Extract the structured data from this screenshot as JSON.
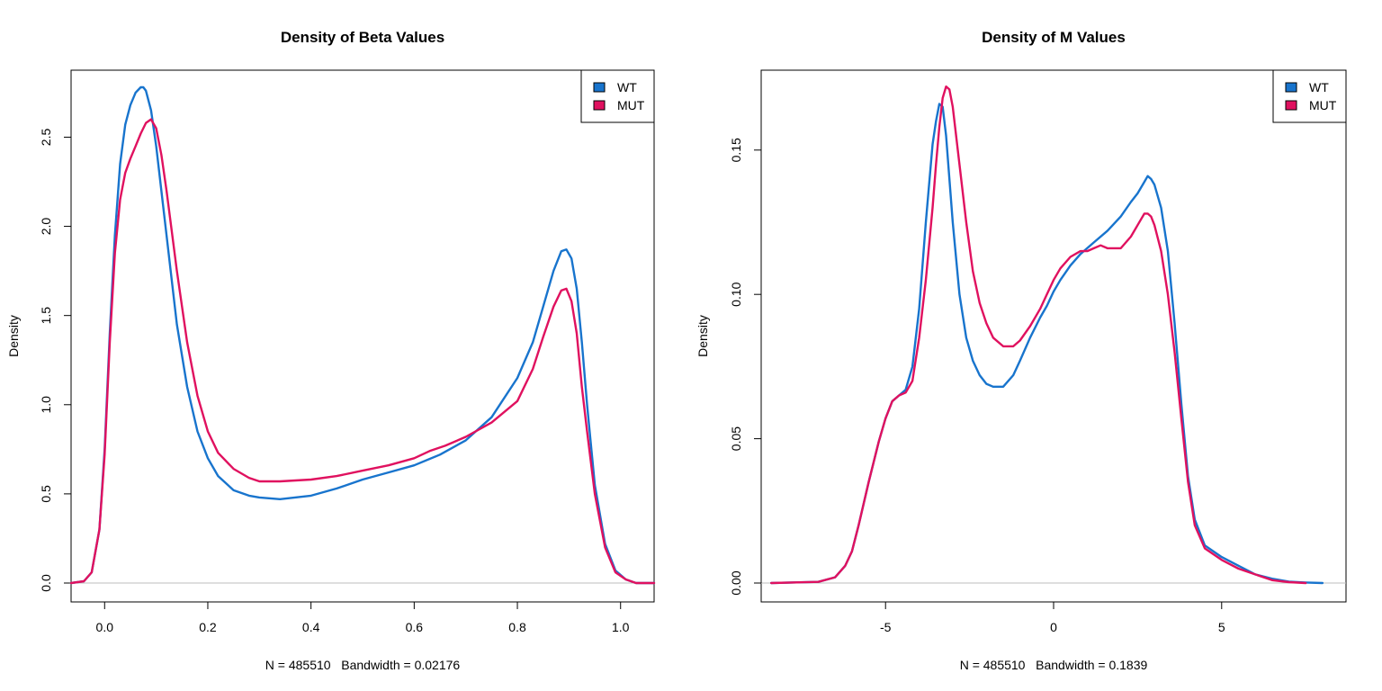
{
  "chart_data": [
    {
      "type": "line",
      "title": "Density of Beta Values",
      "xlabel": "N = 485510   Bandwidth = 0.02176",
      "ylabel": "Density",
      "xlim": [
        -0.065,
        1.065
      ],
      "ylim": [
        0,
        2.8
      ],
      "xticks": [
        0.0,
        0.2,
        0.4,
        0.6,
        0.8,
        1.0
      ],
      "xtick_labels": [
        "0.0",
        "0.2",
        "0.4",
        "0.6",
        "0.8",
        "1.0"
      ],
      "yticks": [
        0.0,
        0.5,
        1.0,
        1.5,
        2.0,
        2.5
      ],
      "ytick_labels": [
        "0.0",
        "0.5",
        "1.0",
        "1.5",
        "2.0",
        "2.5"
      ],
      "baseline": 0,
      "legend": {
        "position": "top-right",
        "entries": [
          "WT",
          "MUT"
        ]
      },
      "series": [
        {
          "name": "WT",
          "color": "#1874cd",
          "x": [
            -0.065,
            -0.04,
            -0.025,
            -0.01,
            0.0,
            0.01,
            0.02,
            0.03,
            0.04,
            0.05,
            0.06,
            0.07,
            0.075,
            0.08,
            0.09,
            0.1,
            0.12,
            0.14,
            0.16,
            0.18,
            0.2,
            0.22,
            0.25,
            0.28,
            0.3,
            0.34,
            0.4,
            0.45,
            0.5,
            0.55,
            0.6,
            0.65,
            0.7,
            0.75,
            0.8,
            0.83,
            0.85,
            0.87,
            0.885,
            0.895,
            0.905,
            0.915,
            0.925,
            0.935,
            0.95,
            0.97,
            0.99,
            1.01,
            1.03,
            1.065
          ],
          "y": [
            0.0,
            0.01,
            0.06,
            0.3,
            0.75,
            1.4,
            1.95,
            2.35,
            2.57,
            2.68,
            2.75,
            2.78,
            2.78,
            2.76,
            2.65,
            2.45,
            1.95,
            1.45,
            1.1,
            0.85,
            0.7,
            0.6,
            0.52,
            0.49,
            0.48,
            0.47,
            0.49,
            0.53,
            0.58,
            0.62,
            0.66,
            0.72,
            0.8,
            0.93,
            1.15,
            1.35,
            1.55,
            1.75,
            1.86,
            1.87,
            1.82,
            1.65,
            1.35,
            1.0,
            0.55,
            0.22,
            0.07,
            0.02,
            0.0,
            0.0
          ]
        },
        {
          "name": "MUT",
          "color": "#e0115f",
          "x": [
            -0.065,
            -0.04,
            -0.025,
            -0.01,
            0.0,
            0.01,
            0.02,
            0.03,
            0.04,
            0.05,
            0.06,
            0.07,
            0.08,
            0.09,
            0.1,
            0.11,
            0.12,
            0.14,
            0.16,
            0.18,
            0.2,
            0.22,
            0.25,
            0.28,
            0.3,
            0.34,
            0.4,
            0.45,
            0.5,
            0.55,
            0.6,
            0.63,
            0.66,
            0.7,
            0.75,
            0.8,
            0.83,
            0.85,
            0.87,
            0.885,
            0.895,
            0.905,
            0.915,
            0.925,
            0.935,
            0.95,
            0.97,
            0.99,
            1.01,
            1.03,
            1.065
          ],
          "y": [
            0.0,
            0.01,
            0.06,
            0.3,
            0.72,
            1.35,
            1.85,
            2.15,
            2.3,
            2.38,
            2.45,
            2.52,
            2.58,
            2.6,
            2.55,
            2.4,
            2.2,
            1.75,
            1.35,
            1.05,
            0.85,
            0.73,
            0.64,
            0.59,
            0.57,
            0.57,
            0.58,
            0.6,
            0.63,
            0.66,
            0.7,
            0.74,
            0.77,
            0.82,
            0.9,
            1.02,
            1.2,
            1.38,
            1.55,
            1.64,
            1.65,
            1.58,
            1.4,
            1.1,
            0.85,
            0.5,
            0.2,
            0.06,
            0.02,
            0.0,
            0.0
          ]
        }
      ]
    },
    {
      "type": "line",
      "title": "Density of M Values",
      "xlabel": "N = 485510   Bandwidth = 0.1839",
      "ylabel": "Density",
      "xlim": [
        -8.7,
        8.7
      ],
      "ylim": [
        0,
        0.173
      ],
      "xticks": [
        -5,
        0,
        5
      ],
      "xtick_labels": [
        "-5",
        "0",
        "5"
      ],
      "yticks": [
        0.0,
        0.05,
        0.1,
        0.15
      ],
      "ytick_labels": [
        "0.00",
        "0.05",
        "0.10",
        "0.15"
      ],
      "baseline": 0,
      "legend": {
        "position": "top-right",
        "entries": [
          "WT",
          "MUT"
        ]
      },
      "series": [
        {
          "name": "WT",
          "color": "#1874cd",
          "x": [
            -8.4,
            -7.0,
            -6.5,
            -6.2,
            -6.0,
            -5.8,
            -5.5,
            -5.2,
            -5.0,
            -4.8,
            -4.6,
            -4.4,
            -4.2,
            -4.0,
            -3.8,
            -3.6,
            -3.5,
            -3.4,
            -3.3,
            -3.2,
            -3.1,
            -3.0,
            -2.8,
            -2.6,
            -2.4,
            -2.2,
            -2.0,
            -1.8,
            -1.5,
            -1.2,
            -1.0,
            -0.7,
            -0.4,
            -0.2,
            0.0,
            0.2,
            0.5,
            0.8,
            1.2,
            1.6,
            2.0,
            2.3,
            2.5,
            2.7,
            2.8,
            2.9,
            3.0,
            3.2,
            3.4,
            3.6,
            3.8,
            4.0,
            4.2,
            4.5,
            5.0,
            5.5,
            6.0,
            6.5,
            7.0,
            7.5,
            8.0
          ],
          "y": [
            0.0,
            0.0004,
            0.002,
            0.006,
            0.011,
            0.02,
            0.035,
            0.049,
            0.057,
            0.063,
            0.065,
            0.067,
            0.075,
            0.095,
            0.125,
            0.152,
            0.16,
            0.166,
            0.165,
            0.155,
            0.14,
            0.125,
            0.1,
            0.085,
            0.077,
            0.072,
            0.069,
            0.068,
            0.068,
            0.072,
            0.077,
            0.085,
            0.092,
            0.096,
            0.101,
            0.105,
            0.11,
            0.114,
            0.118,
            0.122,
            0.127,
            0.132,
            0.135,
            0.139,
            0.141,
            0.14,
            0.138,
            0.13,
            0.115,
            0.09,
            0.062,
            0.037,
            0.022,
            0.013,
            0.009,
            0.006,
            0.003,
            0.0015,
            0.0005,
            0.0002,
            0.0
          ]
        },
        {
          "name": "MUT",
          "color": "#e0115f",
          "x": [
            -8.4,
            -7.0,
            -6.5,
            -6.2,
            -6.0,
            -5.8,
            -5.5,
            -5.2,
            -5.0,
            -4.8,
            -4.6,
            -4.4,
            -4.2,
            -4.0,
            -3.8,
            -3.6,
            -3.5,
            -3.4,
            -3.3,
            -3.2,
            -3.1,
            -3.0,
            -2.8,
            -2.6,
            -2.4,
            -2.2,
            -2.0,
            -1.8,
            -1.5,
            -1.2,
            -1.0,
            -0.7,
            -0.4,
            -0.2,
            0.0,
            0.2,
            0.5,
            0.8,
            1.0,
            1.2,
            1.4,
            1.6,
            1.8,
            2.0,
            2.3,
            2.5,
            2.7,
            2.8,
            2.9,
            3.0,
            3.2,
            3.4,
            3.6,
            3.8,
            4.0,
            4.2,
            4.5,
            5.0,
            5.5,
            6.0,
            6.5,
            7.0,
            7.5
          ],
          "y": [
            0.0,
            0.0004,
            0.002,
            0.006,
            0.011,
            0.02,
            0.035,
            0.049,
            0.057,
            0.063,
            0.065,
            0.066,
            0.07,
            0.085,
            0.105,
            0.13,
            0.145,
            0.158,
            0.168,
            0.172,
            0.171,
            0.165,
            0.145,
            0.125,
            0.108,
            0.097,
            0.09,
            0.085,
            0.082,
            0.082,
            0.084,
            0.089,
            0.095,
            0.1,
            0.105,
            0.109,
            0.113,
            0.115,
            0.115,
            0.116,
            0.117,
            0.116,
            0.116,
            0.116,
            0.12,
            0.124,
            0.128,
            0.128,
            0.127,
            0.124,
            0.115,
            0.1,
            0.08,
            0.057,
            0.035,
            0.02,
            0.012,
            0.008,
            0.005,
            0.003,
            0.001,
            0.0003,
            0.0
          ]
        }
      ]
    }
  ]
}
